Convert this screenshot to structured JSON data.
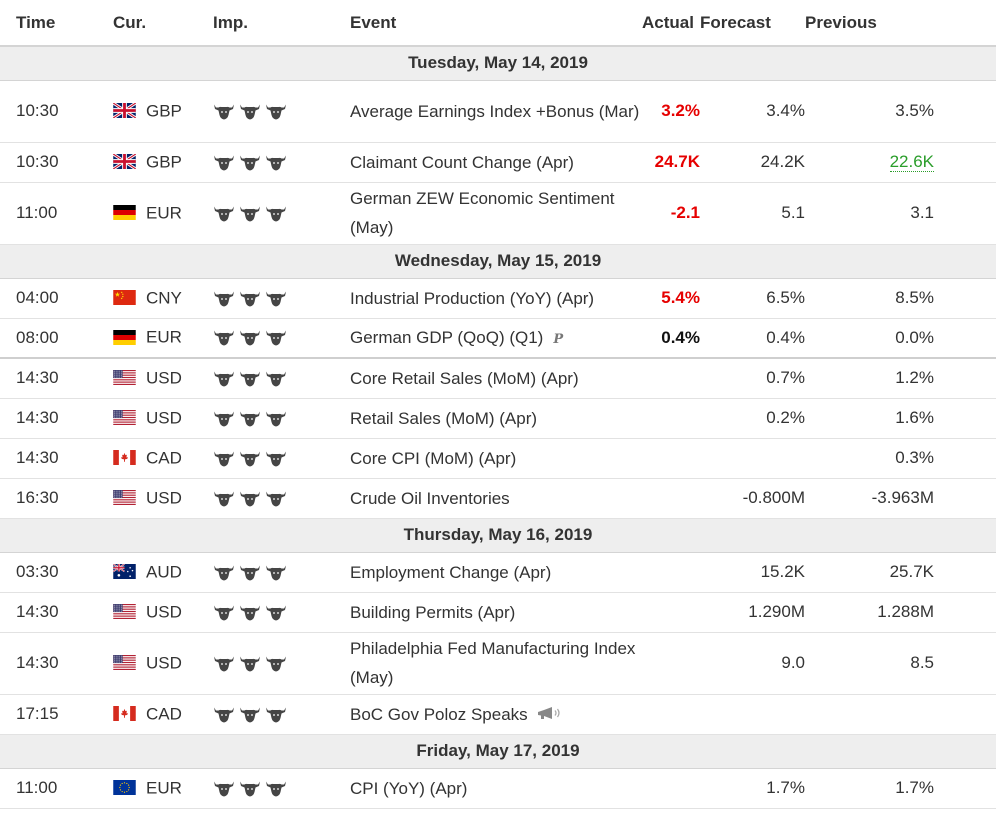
{
  "header": {
    "time": "Time",
    "currency": "Cur.",
    "importance": "Imp.",
    "event": "Event",
    "actual": "Actual",
    "forecast": "Forecast",
    "previous": "Previous"
  },
  "colors": {
    "actual_worse": "#e60000",
    "previous_revised_up": "#2a9d2a",
    "date_row_bg": "#eeeeee"
  },
  "days": [
    {
      "date": "Tuesday, May 14, 2019",
      "events": [
        {
          "time": "10:30",
          "flag": "gb-flag-icon",
          "currency": "GBP",
          "importance": 3,
          "event": "Average Earnings Index +Bonus (Mar)",
          "actual": "3.2%",
          "actual_style": "red",
          "forecast": "3.4%",
          "previous": "3.5%",
          "previous_style": "normal"
        },
        {
          "time": "10:30",
          "flag": "gb-flag-icon",
          "currency": "GBP",
          "importance": 3,
          "event": "Claimant Count Change (Apr)",
          "actual": "24.7K",
          "actual_style": "red",
          "forecast": "24.2K",
          "previous": "22.6K",
          "previous_style": "green"
        },
        {
          "time": "11:00",
          "flag": "de-flag-icon",
          "currency": "EUR",
          "importance": 3,
          "event": "German ZEW Economic Sentiment (May)",
          "actual": "-2.1",
          "actual_style": "red",
          "forecast": "5.1",
          "previous": "3.1",
          "previous_style": "normal"
        }
      ]
    },
    {
      "date": "Wednesday, May 15, 2019",
      "events": [
        {
          "time": "04:00",
          "flag": "cn-flag-icon",
          "currency": "CNY",
          "importance": 3,
          "event": "Industrial Production (YoY) (Apr)",
          "actual": "5.4%",
          "actual_style": "red",
          "forecast": "6.5%",
          "previous": "8.5%",
          "previous_style": "normal"
        },
        {
          "time": "08:00",
          "flag": "de-flag-icon",
          "currency": "EUR",
          "importance": 3,
          "event": "German GDP (QoQ) (Q1)",
          "prelim": "P",
          "actual": "0.4%",
          "actual_style": "black",
          "forecast": "0.4%",
          "previous": "0.0%",
          "previous_style": "normal"
        },
        {
          "time": "14:30",
          "flag": "us-flag-icon",
          "currency": "USD",
          "importance": 3,
          "event": "Core Retail Sales (MoM) (Apr)",
          "actual": "",
          "forecast": "0.7%",
          "previous": "1.2%",
          "previous_style": "normal"
        },
        {
          "time": "14:30",
          "flag": "us-flag-icon",
          "currency": "USD",
          "importance": 3,
          "event": "Retail Sales (MoM) (Apr)",
          "actual": "",
          "forecast": "0.2%",
          "previous": "1.6%",
          "previous_style": "normal"
        },
        {
          "time": "14:30",
          "flag": "ca-flag-icon",
          "currency": "CAD",
          "importance": 3,
          "event": "Core CPI (MoM) (Apr)",
          "actual": "",
          "forecast": "",
          "previous": "0.3%",
          "previous_style": "normal"
        },
        {
          "time": "16:30",
          "flag": "us-flag-icon",
          "currency": "USD",
          "importance": 3,
          "event": "Crude Oil Inventories",
          "actual": "",
          "forecast": "-0.800M",
          "previous": "-3.963M",
          "previous_style": "normal"
        }
      ]
    },
    {
      "date": "Thursday, May 16, 2019",
      "events": [
        {
          "time": "03:30",
          "flag": "au-flag-icon",
          "currency": "AUD",
          "importance": 3,
          "event": "Employment Change (Apr)",
          "actual": "",
          "forecast": "15.2K",
          "previous": "25.7K",
          "previous_style": "normal"
        },
        {
          "time": "14:30",
          "flag": "us-flag-icon",
          "currency": "USD",
          "importance": 3,
          "event": "Building Permits (Apr)",
          "actual": "",
          "forecast": "1.290M",
          "previous": "1.288M",
          "previous_style": "normal"
        },
        {
          "time": "14:30",
          "flag": "us-flag-icon",
          "currency": "USD",
          "importance": 3,
          "event": "Philadelphia Fed Manufacturing Index (May)",
          "actual": "",
          "forecast": "9.0",
          "previous": "8.5",
          "previous_style": "normal"
        },
        {
          "time": "17:15",
          "flag": "ca-flag-icon",
          "currency": "CAD",
          "importance": 3,
          "event": "BoC Gov Poloz Speaks",
          "speech": true,
          "actual": "",
          "forecast": "",
          "previous": "",
          "previous_style": "normal"
        }
      ]
    },
    {
      "date": "Friday, May 17, 2019",
      "events": [
        {
          "time": "11:00",
          "flag": "eu-flag-icon",
          "currency": "EUR",
          "importance": 3,
          "event": "CPI (YoY) (Apr)",
          "actual": "",
          "forecast": "1.7%",
          "previous": "1.7%",
          "previous_style": "normal"
        }
      ]
    }
  ]
}
